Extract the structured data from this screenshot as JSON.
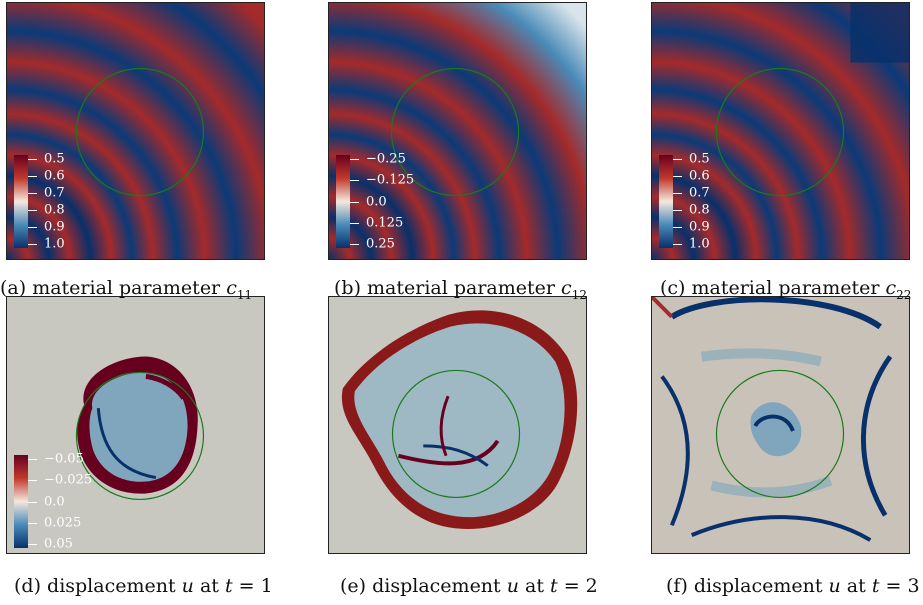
{
  "figure": {
    "panels": [
      {
        "id": "a",
        "caption_prefix": "(a) material parameter ",
        "caption_math": "c",
        "caption_sub": "11",
        "colorbar": {
          "ticks": [
            "0.5",
            "0.6",
            "0.7",
            "0.8",
            "0.9",
            "1.0"
          ]
        }
      },
      {
        "id": "b",
        "caption_prefix": "(b) material parameter ",
        "caption_math": "c",
        "caption_sub": "12",
        "colorbar": {
          "ticks": [
            "−0.25",
            "−0.125",
            "0.0",
            "0.125",
            "0.25"
          ]
        }
      },
      {
        "id": "c",
        "caption_prefix": "(c) material parameter ",
        "caption_math": "c",
        "caption_sub": "22",
        "colorbar": {
          "ticks": [
            "0.5",
            "0.6",
            "0.7",
            "0.8",
            "0.9",
            "1.0"
          ]
        }
      },
      {
        "id": "d",
        "caption_prefix": "(d) displacement ",
        "caption_math": "u",
        "caption_suffix": " at ",
        "caption_math2": "t",
        "caption_value": " = 1",
        "colorbar": {
          "ticks": [
            "−0.05",
            "−0.025",
            "0.0",
            "0.025",
            "0.05"
          ]
        }
      },
      {
        "id": "e",
        "caption_prefix": "(e) displacement ",
        "caption_math": "u",
        "caption_suffix": " at ",
        "caption_math2": "t",
        "caption_value": " = 2"
      },
      {
        "id": "f",
        "caption_prefix": "(f) displacement ",
        "caption_math": "u",
        "caption_suffix": " at ",
        "caption_math2": "t",
        "caption_value": " = 3"
      }
    ],
    "colors": {
      "diverging_low": "#08306b",
      "diverging_mid": "#f2eee6",
      "diverging_high": "#67001f",
      "circle": "#1a7a1a",
      "background_field": "#c8c8c0"
    },
    "colormap": "RdBu"
  }
}
